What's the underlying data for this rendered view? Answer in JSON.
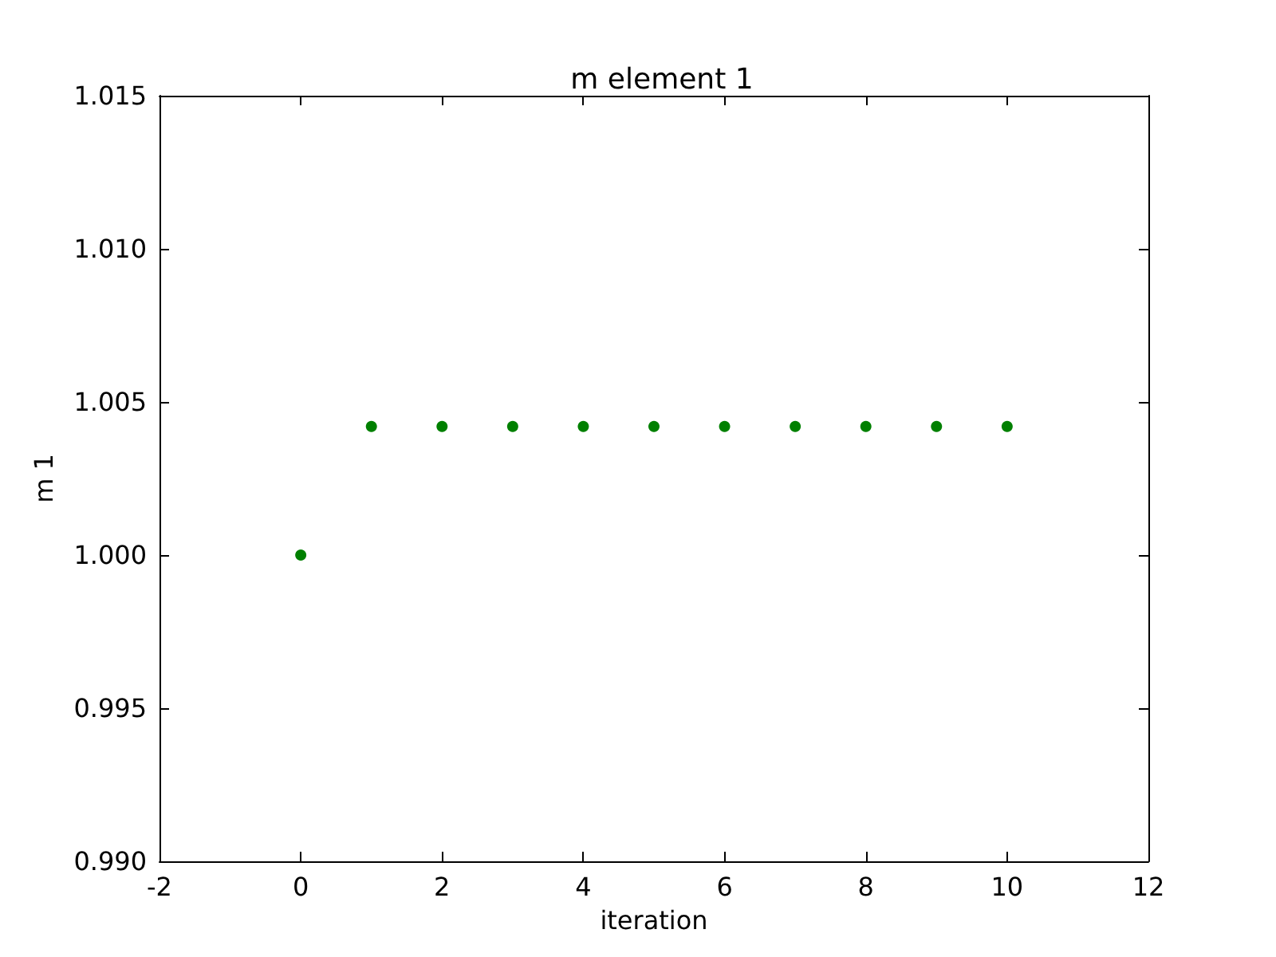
{
  "chart_data": {
    "type": "scatter",
    "title": "m element 1",
    "xlabel": "iteration",
    "ylabel": "m 1",
    "x": [
      0,
      1,
      2,
      3,
      4,
      5,
      6,
      7,
      8,
      9,
      10
    ],
    "series": [
      {
        "color": "#008000",
        "values": [
          1.0,
          1.0042,
          1.0042,
          1.0042,
          1.0042,
          1.0042,
          1.0042,
          1.0042,
          1.0042,
          1.0042,
          1.0042
        ]
      }
    ],
    "xlim": [
      -2,
      12
    ],
    "xticks": [
      -2,
      0,
      2,
      4,
      6,
      8,
      10,
      12
    ],
    "ylim": [
      0.99,
      1.015
    ],
    "yticks": [
      {
        "value": 0.99,
        "label": "0.990"
      },
      0.995,
      {
        "value": 1.0,
        "label": "1.000"
      },
      1.005,
      {
        "value": 1.01,
        "label": "1.010"
      },
      1.015
    ],
    "marker": "circle",
    "grid": false
  }
}
